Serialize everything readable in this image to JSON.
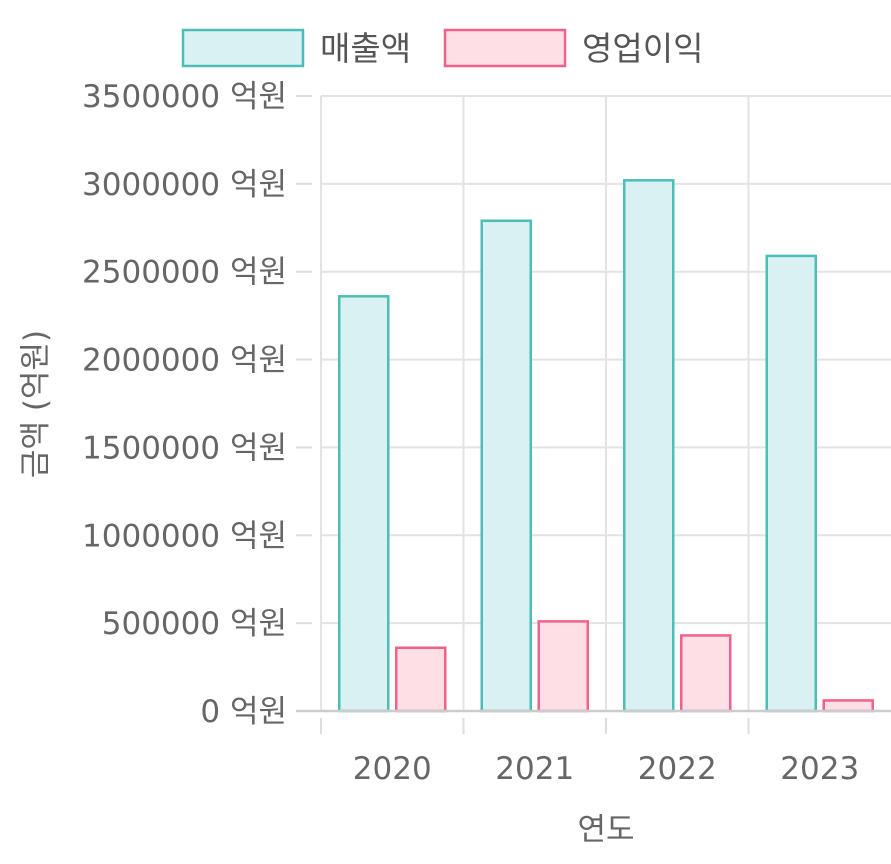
{
  "chart_data": {
    "type": "bar",
    "categories": [
      "2020",
      "2021",
      "2022",
      "2023"
    ],
    "series": [
      {
        "name": "매출액",
        "values": [
          2360000,
          2790000,
          3020000,
          2590000
        ],
        "fill": "#d9f1f2",
        "stroke": "#4dbdb8"
      },
      {
        "name": "영업이익",
        "values": [
          360000,
          510000,
          430000,
          60000
        ],
        "fill": "#ffdfe6",
        "stroke": "#f0628a"
      }
    ],
    "ylim": [
      0,
      3500000
    ],
    "yticks": [
      0,
      500000,
      1000000,
      1500000,
      2000000,
      2500000,
      3000000,
      3500000
    ],
    "ytick_labels": [
      "0 억원",
      "500000 억원",
      "1000000 억원",
      "1500000 억원",
      "2000000 억원",
      "2500000 억원",
      "3000000 억원",
      "3500000 억원"
    ],
    "xlabel": "연도",
    "ylabel": "금액 (억원)",
    "grid": true,
    "legend_position": "top"
  }
}
